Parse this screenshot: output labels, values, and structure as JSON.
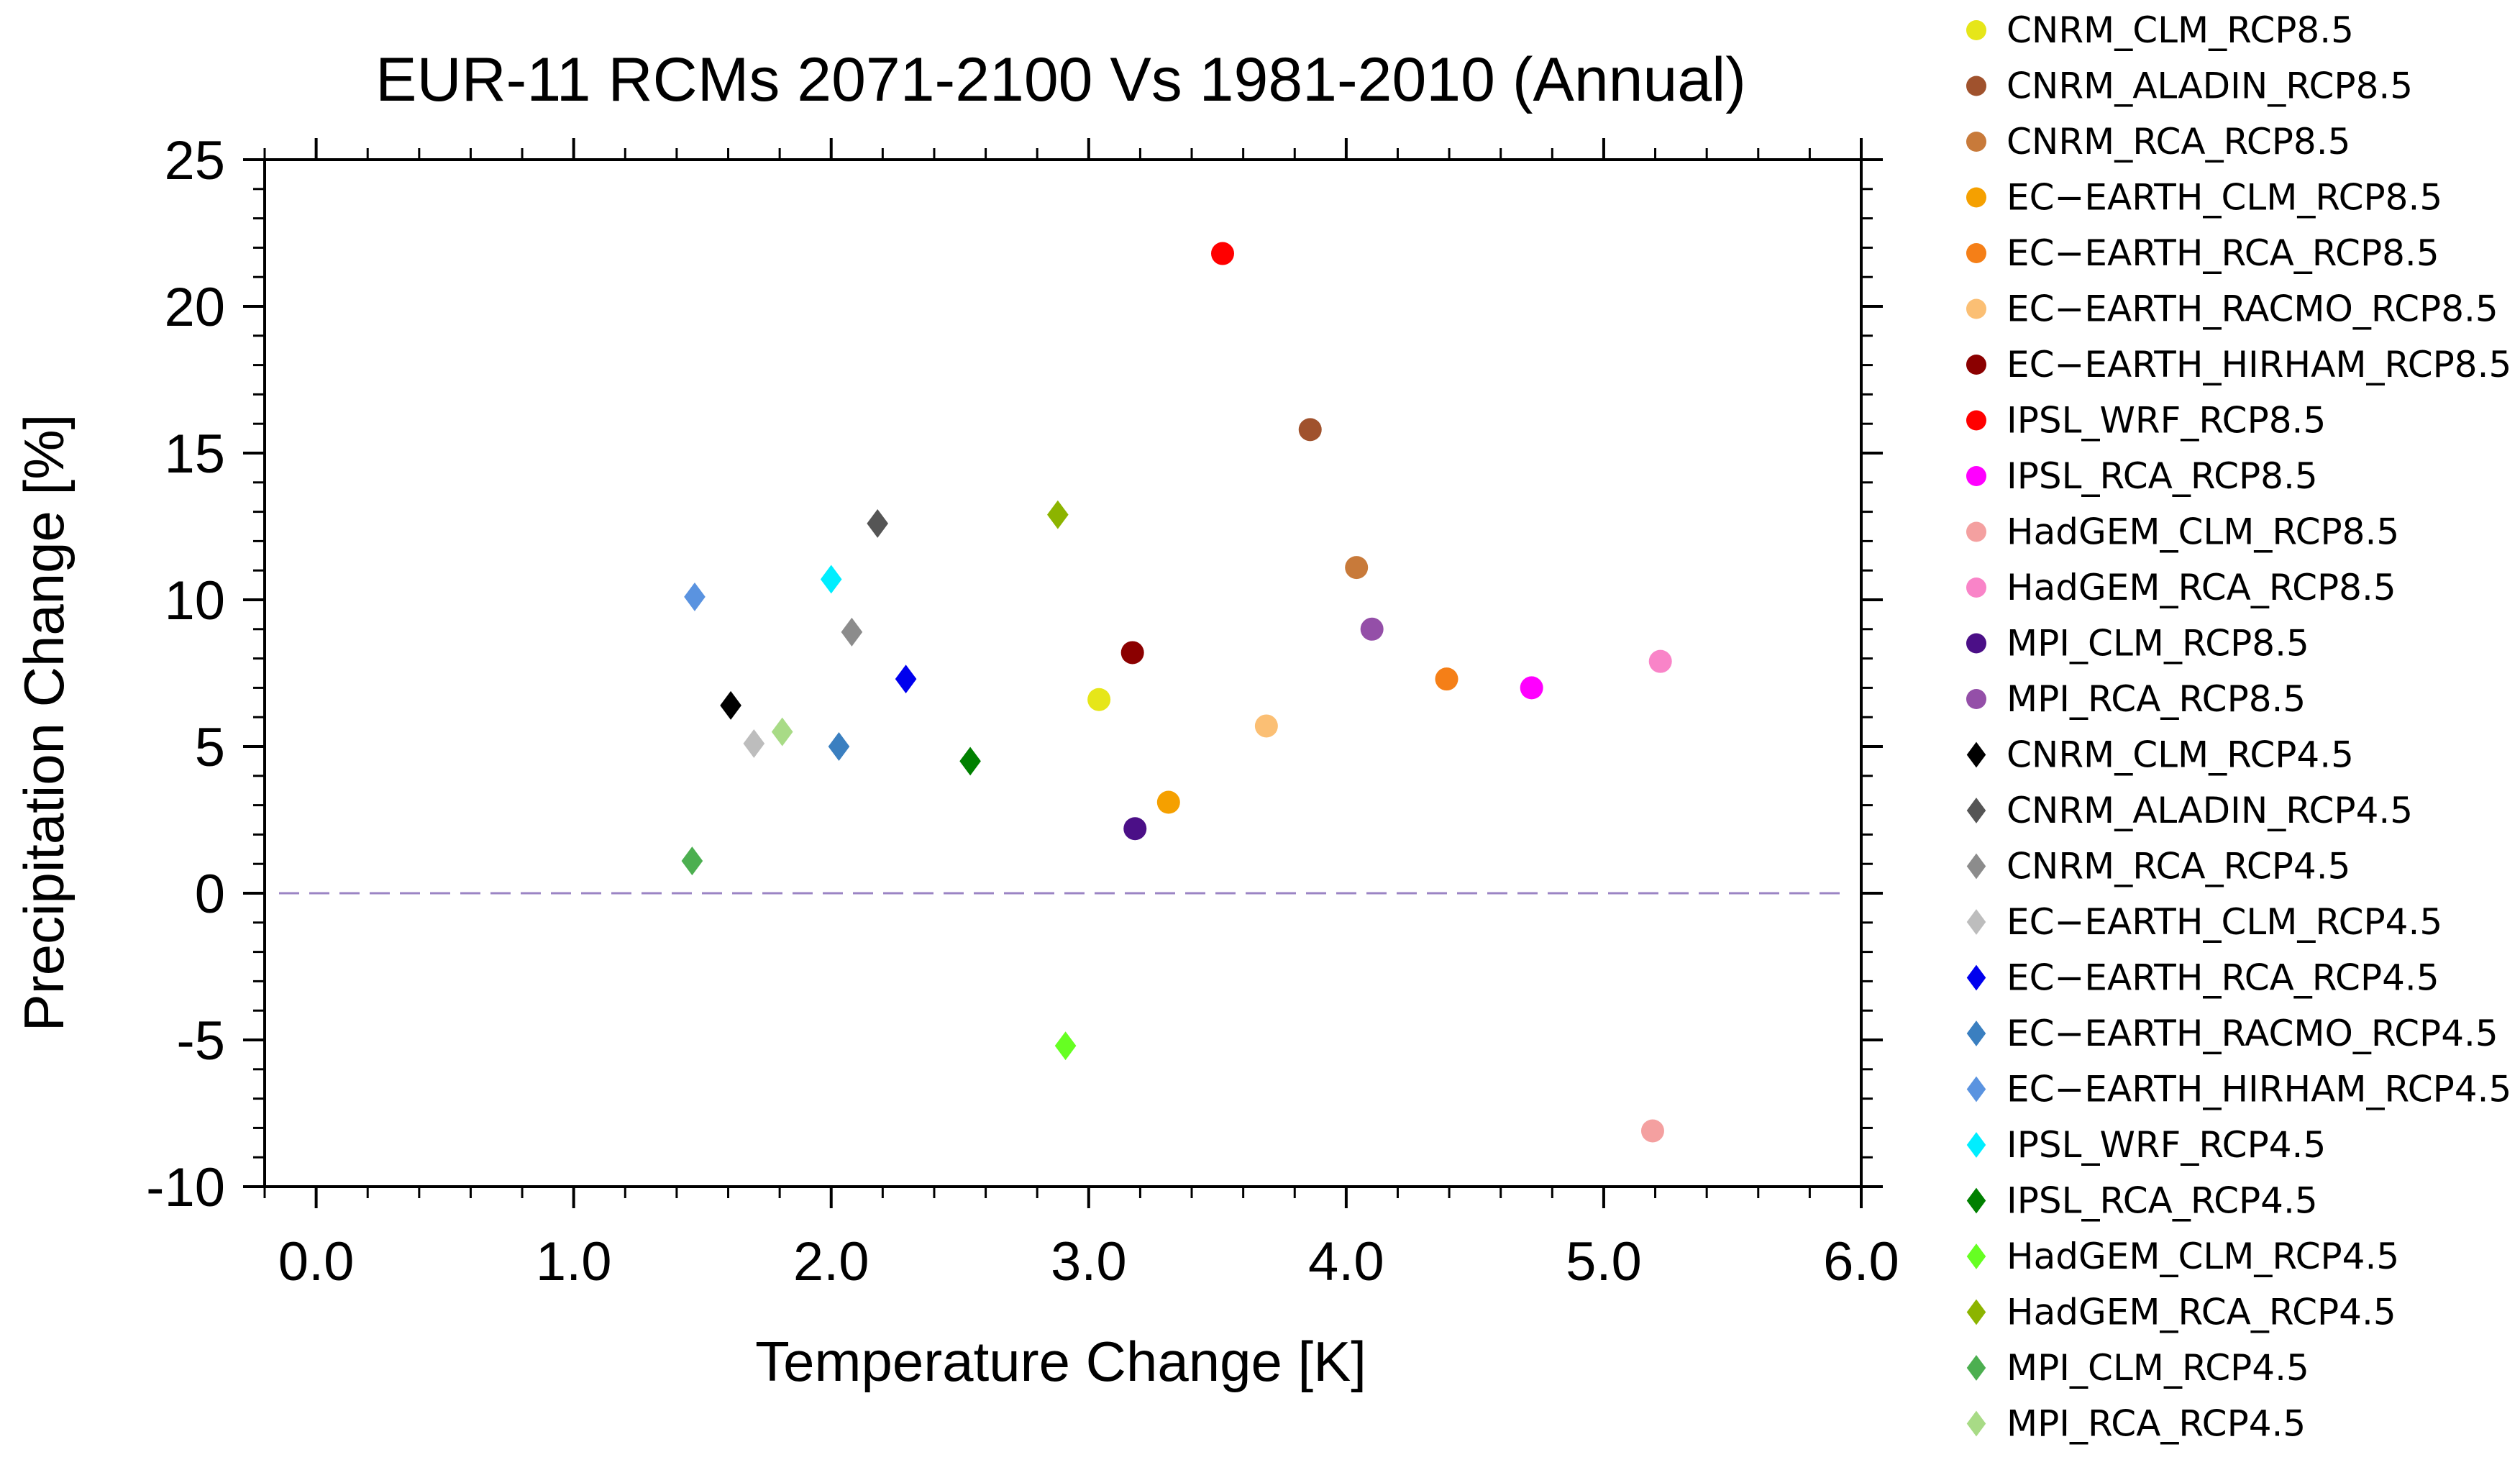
{
  "chart_data": {
    "type": "scatter",
    "title": "EUR-11 RCMs 2071-2100 Vs 1981-2010 (Annual)",
    "xlabel": "Temperature Change [K]",
    "ylabel": "Precipitation Change [%]",
    "xlim": [
      -0.2,
      6.0
    ],
    "ylim": [
      -10,
      25
    ],
    "xticks": [
      0.0,
      1.0,
      2.0,
      3.0,
      4.0,
      5.0,
      6.0
    ],
    "xtick_labels": [
      "0.0",
      "1.0",
      "2.0",
      "3.0",
      "4.0",
      "5.0",
      "6.0"
    ],
    "yticks": [
      -10,
      -5,
      0,
      5,
      10,
      15,
      20,
      25
    ],
    "ytick_labels": [
      "-10",
      "-5",
      "0",
      "5",
      "10",
      "15",
      "20",
      "25"
    ],
    "reference_line": {
      "y": 0,
      "style": "dashed",
      "color": "#9b84c4"
    },
    "legend_position": "right",
    "series": [
      {
        "name": "CNRM_CLM_RCP8.5",
        "marker": "circle",
        "color": "#e6e619",
        "x": 3.04,
        "y": 6.6
      },
      {
        "name": "CNRM_ALADIN_RCP8.5",
        "marker": "circle",
        "color": "#a0522d",
        "x": 3.86,
        "y": 15.8
      },
      {
        "name": "CNRM_RCA_RCP8.5",
        "marker": "circle",
        "color": "#c87a3a",
        "x": 4.04,
        "y": 11.1
      },
      {
        "name": "EC−EARTH_CLM_RCP8.5",
        "marker": "circle",
        "color": "#f5a000",
        "x": 3.31,
        "y": 3.1
      },
      {
        "name": "EC−EARTH_RCA_RCP8.5",
        "marker": "circle",
        "color": "#f57f17",
        "x": 4.39,
        "y": 7.3
      },
      {
        "name": "EC−EARTH_RACMO_RCP8.5",
        "marker": "circle",
        "color": "#fbbf74",
        "x": 3.69,
        "y": 5.7
      },
      {
        "name": "EC−EARTH_HIRHAM_RCP8.5",
        "marker": "circle",
        "color": "#8b0000",
        "x": 3.17,
        "y": 8.2
      },
      {
        "name": "IPSL_WRF_RCP8.5",
        "marker": "circle",
        "color": "#ff0000",
        "x": 3.52,
        "y": 21.8
      },
      {
        "name": "IPSL_RCA_RCP8.5",
        "marker": "circle",
        "color": "#ff00ff",
        "x": 4.72,
        "y": 7.0
      },
      {
        "name": "HadGEM_CLM_RCP8.5",
        "marker": "circle",
        "color": "#f4a0a0",
        "x": 5.19,
        "y": -8.1
      },
      {
        "name": "HadGEM_RCA_RCP8.5",
        "marker": "circle",
        "color": "#f984c8",
        "x": 5.22,
        "y": 7.9
      },
      {
        "name": "MPI_CLM_RCP8.5",
        "marker": "circle",
        "color": "#4b0f87",
        "x": 3.18,
        "y": 2.2
      },
      {
        "name": "MPI_RCA_RCP8.5",
        "marker": "circle",
        "color": "#944fa8",
        "x": 4.1,
        "y": 9.0
      },
      {
        "name": "CNRM_CLM_RCP4.5",
        "marker": "diamond",
        "color": "#000000",
        "x": 1.61,
        "y": 6.4
      },
      {
        "name": "CNRM_ALADIN_RCP4.5",
        "marker": "diamond",
        "color": "#555555",
        "x": 2.18,
        "y": 12.6
      },
      {
        "name": "CNRM_RCA_RCP4.5",
        "marker": "diamond",
        "color": "#8c8c8c",
        "x": 2.08,
        "y": 8.9
      },
      {
        "name": "EC−EARTH_CLM_RCP4.5",
        "marker": "diamond",
        "color": "#bdbdbd",
        "x": 1.7,
        "y": 5.1
      },
      {
        "name": "EC−EARTH_RCA_RCP4.5",
        "marker": "diamond",
        "color": "#0000ee",
        "x": 2.29,
        "y": 7.3
      },
      {
        "name": "EC−EARTH_RACMO_RCP4.5",
        "marker": "diamond",
        "color": "#3a7fc0",
        "x": 2.03,
        "y": 5.0
      },
      {
        "name": "EC−EARTH_HIRHAM_RCP4.5",
        "marker": "diamond",
        "color": "#5a93e0",
        "x": 1.47,
        "y": 10.1
      },
      {
        "name": "IPSL_WRF_RCP4.5",
        "marker": "diamond",
        "color": "#00eeff",
        "x": 2.0,
        "y": 10.7
      },
      {
        "name": "IPSL_RCA_RCP4.5",
        "marker": "diamond",
        "color": "#008000",
        "x": 2.54,
        "y": 4.5
      },
      {
        "name": "HadGEM_CLM_RCP4.5",
        "marker": "diamond",
        "color": "#66ff22",
        "x": 2.91,
        "y": -5.2
      },
      {
        "name": "HadGEM_RCA_RCP4.5",
        "marker": "diamond",
        "color": "#8cb400",
        "x": 2.88,
        "y": 12.9
      },
      {
        "name": "MPI_CLM_RCP4.5",
        "marker": "diamond",
        "color": "#4caf50",
        "x": 1.46,
        "y": 1.1
      },
      {
        "name": "MPI_RCA_RCP4.5",
        "marker": "diamond",
        "color": "#a8db86",
        "x": 1.81,
        "y": 5.5
      }
    ]
  }
}
